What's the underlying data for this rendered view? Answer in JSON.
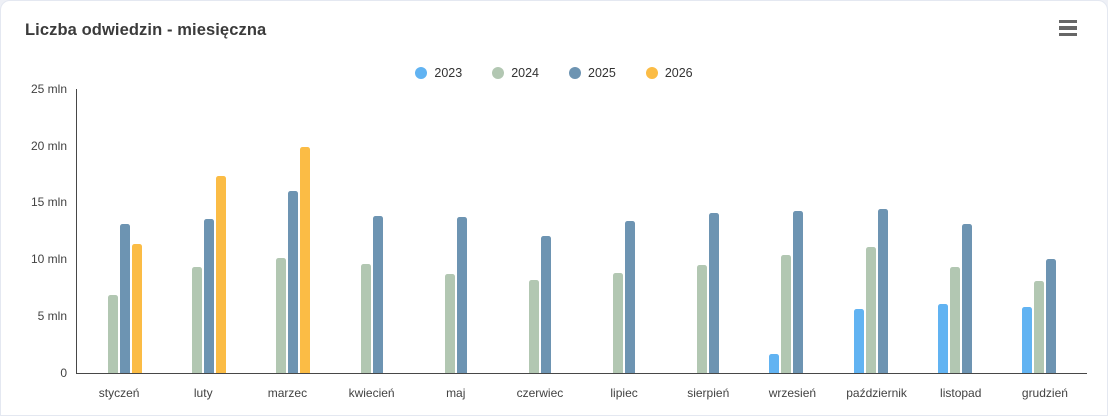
{
  "card": {
    "title": "Liczba odwiedzin - miesięczna",
    "menu_icon": "hamburger-icon"
  },
  "chart_data": {
    "type": "bar",
    "title": "Liczba odwiedzin - miesięczna",
    "xlabel": "",
    "ylabel": "",
    "unit": "mln",
    "ylim": [
      0,
      25
    ],
    "grid": false,
    "legend_position": "top-center",
    "yticks": [
      {
        "value": 25,
        "label": "25 mln"
      },
      {
        "value": 20,
        "label": "20 mln"
      },
      {
        "value": 15,
        "label": "15 mln"
      },
      {
        "value": 10,
        "label": "10 mln"
      },
      {
        "value": 5,
        "label": "5 mln"
      },
      {
        "value": 0,
        "label": "0"
      }
    ],
    "categories": [
      "styczeń",
      "luty",
      "marzec",
      "kwiecień",
      "maj",
      "czerwiec",
      "lipiec",
      "sierpień",
      "wrzesień",
      "październik",
      "listopad",
      "grudzień"
    ],
    "series": [
      {
        "name": "2023",
        "color": "#61B3F2",
        "values": [
          null,
          null,
          null,
          null,
          null,
          null,
          null,
          null,
          1.6,
          5.6,
          6.0,
          5.8
        ]
      },
      {
        "name": "2024",
        "color": "#B2C7B2",
        "values": [
          6.8,
          9.3,
          10.1,
          9.6,
          8.7,
          8.2,
          8.8,
          9.5,
          10.4,
          11.1,
          9.3,
          8.1
        ]
      },
      {
        "name": "2025",
        "color": "#6D94B2",
        "values": [
          13.1,
          13.5,
          16.0,
          13.8,
          13.7,
          12.0,
          13.4,
          14.1,
          14.2,
          14.4,
          13.1,
          10.0
        ]
      },
      {
        "name": "2026",
        "color": "#FBBC45",
        "values": [
          11.3,
          17.3,
          19.9,
          null,
          null,
          null,
          null,
          null,
          null,
          null,
          null,
          null
        ]
      }
    ]
  }
}
